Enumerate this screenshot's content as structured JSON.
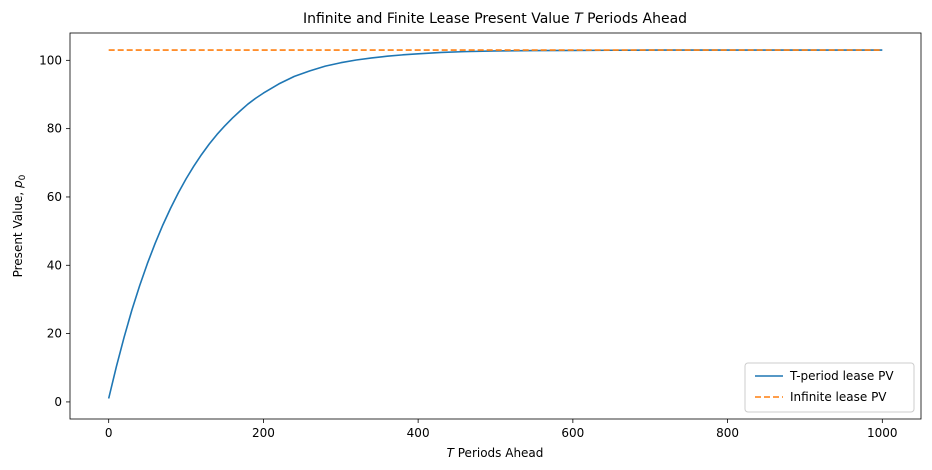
{
  "chart_data": {
    "type": "line",
    "title": "Infinite and Finite Lease Present Value T Periods Ahead",
    "title_parts": {
      "before": "Infinite and Finite Lease Present Value ",
      "italic": "T",
      "after": " Periods Ahead"
    },
    "xlabel": "T Periods Ahead",
    "xlabel_parts": {
      "italic": "T",
      "after": " Periods Ahead"
    },
    "ylabel": "Present Value, p0",
    "ylabel_parts": {
      "before": "Present Value, ",
      "italic": "p",
      "sub": "0"
    },
    "xlim": [
      -50,
      1050
    ],
    "ylim": [
      -5,
      108
    ],
    "xticks": [
      0,
      200,
      400,
      600,
      800,
      1000
    ],
    "yticks": [
      0,
      20,
      40,
      60,
      80,
      100
    ],
    "grid": false,
    "legend_position": "lower-right",
    "series": [
      {
        "name": "T-period lease PV",
        "style": "solid",
        "color": "#1f77b4",
        "x": [
          0,
          10,
          20,
          30,
          40,
          50,
          60,
          70,
          80,
          90,
          100,
          110,
          120,
          130,
          140,
          150,
          160,
          170,
          180,
          190,
          200,
          220,
          240,
          260,
          280,
          300,
          320,
          340,
          360,
          380,
          400,
          430,
          460,
          500,
          550,
          600,
          650,
          700,
          800,
          900,
          1000
        ],
        "y": [
          1.0,
          10.4,
          19.0,
          26.9,
          34.0,
          40.5,
          46.4,
          51.8,
          56.7,
          61.2,
          65.3,
          69.0,
          72.4,
          75.5,
          78.3,
          80.8,
          83.1,
          85.2,
          87.2,
          88.9,
          90.4,
          93.1,
          95.3,
          96.9,
          98.3,
          99.3,
          100.1,
          100.7,
          101.2,
          101.6,
          101.9,
          102.3,
          102.55,
          102.75,
          102.85,
          102.9,
          102.95,
          103.0,
          103.0,
          103.0,
          103.0
        ]
      },
      {
        "name": "Infinite lease PV",
        "style": "dashed",
        "color": "#ff7f0e",
        "x": [
          0,
          1000
        ],
        "y": [
          103.0,
          103.0
        ]
      }
    ]
  }
}
